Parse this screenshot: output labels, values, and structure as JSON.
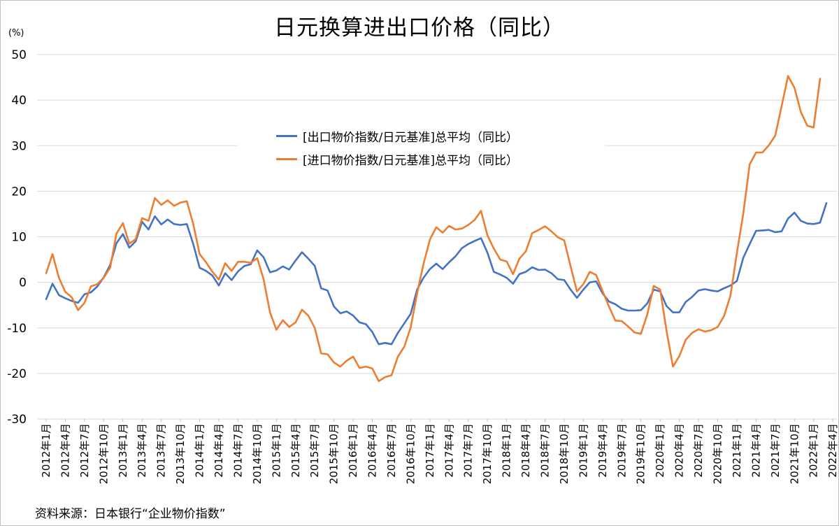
{
  "title": "日元换算进出口价格（同比）",
  "unit_label": "(%)",
  "source": "资料来源：日本银行“企业物价指数”",
  "chart_data": {
    "type": "line",
    "ylim": [
      -30,
      50
    ],
    "yticks": [
      50,
      40,
      30,
      20,
      10,
      0,
      -10,
      -20,
      -30
    ],
    "grid": "horizontal",
    "legend_position": "top-center",
    "x_tick_labels": [
      "2012年1月",
      "2012年4月",
      "2012年7月",
      "2012年10月",
      "2013年1月",
      "2013年4月",
      "2013年7月",
      "2013年10月",
      "2014年1月",
      "2014年4月",
      "2014年7月",
      "2014年10月",
      "2015年1月",
      "2015年4月",
      "2015年7月",
      "2015年10月",
      "2016年1月",
      "2016年4月",
      "2016年7月",
      "2016年10月",
      "2017年1月",
      "2017年4月",
      "2017年7月",
      "2017年10月",
      "2018年1月",
      "2018年4月",
      "2018年7月",
      "2018年10月",
      "2019年1月",
      "2019年4月",
      "2019年7月",
      "2019年10月",
      "2020年1月",
      "2020年4月",
      "2020年7月",
      "2020年10月",
      "2021年1月",
      "2021年4月",
      "2021年7月",
      "2021年10月",
      "2022年1月",
      "2022年4月"
    ],
    "series": [
      {
        "name": "[出口物价指数/日元基准]总平均（同比）",
        "color": "#4472c4",
        "values": [
          -3.7,
          -0.3,
          -2.8,
          -3.5,
          -4.1,
          -4.5,
          -2.6,
          -2.2,
          -0.9,
          1.1,
          3.8,
          8.6,
          10.6,
          7.6,
          9.0,
          13.3,
          11.6,
          14.5,
          12.7,
          13.8,
          12.8,
          12.6,
          12.8,
          8.4,
          3.2,
          2.5,
          1.5,
          -0.7,
          2.0,
          0.5,
          2.4,
          3.6,
          4.0,
          7.0,
          5.5,
          2.2,
          2.6,
          3.5,
          2.8,
          4.8,
          6.6,
          5.2,
          3.6,
          -1.3,
          -1.8,
          -5.3,
          -6.8,
          -6.4,
          -7.3,
          -8.8,
          -9.2,
          -10.9,
          -13.6,
          -13.3,
          -13.6,
          -11.1,
          -9.0,
          -6.9,
          -1.6,
          1.0,
          2.9,
          4.1,
          2.9,
          4.4,
          5.7,
          7.5,
          8.4,
          9.1,
          9.7,
          6.5,
          2.3,
          1.7,
          1.0,
          -0.3,
          1.8,
          2.3,
          3.3,
          2.7,
          2.8,
          2.0,
          0.7,
          0.5,
          -1.6,
          -3.4,
          -1.6,
          0.0,
          0.2,
          -2.4,
          -4.2,
          -4.8,
          -5.8,
          -6.2,
          -6.2,
          -6.1,
          -4.6,
          -1.6,
          -2.0,
          -5.2,
          -6.6,
          -6.6,
          -4.3,
          -3.2,
          -1.8,
          -1.5,
          -1.8,
          -2.0,
          -1.3,
          -0.7,
          0.3,
          5.4,
          8.4,
          11.3,
          11.4,
          11.5,
          11.0,
          11.2,
          14.0,
          15.3,
          13.5,
          12.9,
          12.8,
          13.1,
          17.4
        ]
      },
      {
        "name": "[进口物价指数/日元基准]总平均（同比）",
        "color": "#ed7d31",
        "values": [
          2.0,
          6.2,
          1.0,
          -2.1,
          -3.3,
          -6.1,
          -4.5,
          -0.9,
          -0.4,
          1.0,
          3.2,
          10.7,
          13.0,
          8.5,
          9.5,
          14.1,
          13.5,
          18.5,
          17.0,
          18.0,
          16.8,
          17.5,
          17.8,
          12.8,
          6.2,
          4.4,
          2.3,
          0.6,
          4.2,
          2.5,
          4.5,
          4.5,
          4.3,
          5.3,
          0.7,
          -6.6,
          -10.4,
          -8.3,
          -9.8,
          -8.8,
          -6.0,
          -7.3,
          -10.0,
          -15.6,
          -15.8,
          -17.6,
          -18.5,
          -17.2,
          -16.3,
          -18.8,
          -18.5,
          -18.9,
          -21.7,
          -20.8,
          -20.4,
          -16.3,
          -14.1,
          -9.9,
          -2.4,
          4.0,
          9.4,
          12.1,
          10.9,
          12.4,
          11.6,
          11.8,
          12.6,
          13.7,
          15.7,
          10.3,
          7.4,
          5.0,
          4.6,
          1.8,
          5.2,
          6.8,
          10.8,
          11.5,
          12.3,
          11.2,
          9.9,
          9.2,
          3.5,
          -2.0,
          -0.4,
          2.3,
          1.6,
          -1.9,
          -5.3,
          -8.4,
          -8.5,
          -9.7,
          -11.0,
          -11.3,
          -7.0,
          -0.8,
          -1.6,
          -10.6,
          -18.5,
          -16.2,
          -12.6,
          -11.1,
          -10.3,
          -10.8,
          -10.5,
          -9.8,
          -7.4,
          -2.9,
          6.4,
          15.1,
          25.9,
          28.5,
          28.5,
          30.1,
          32.2,
          38.7,
          45.3,
          42.7,
          37.4,
          34.4,
          34.0,
          44.7
        ]
      }
    ]
  }
}
